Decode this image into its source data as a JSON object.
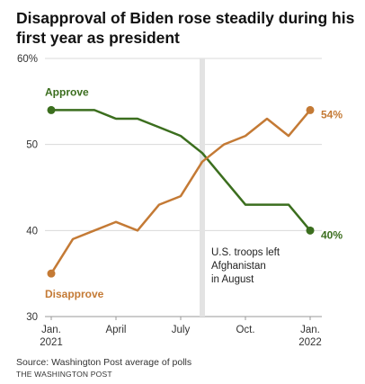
{
  "title": "Disapproval of Biden rose steadily during his first year as president",
  "source": "Source: Washington Post average of polls",
  "publisher": "THE WASHINGTON POST",
  "annotation": [
    "U.S. troops left",
    "Afghanistan",
    "in August"
  ],
  "chart_data": {
    "type": "line",
    "title": "Disapproval of Biden rose steadily during his first year as president",
    "xlabel": "",
    "ylabel": "",
    "ylim": [
      30,
      60
    ],
    "y_ticks": [
      "60%",
      "50",
      "40",
      "30"
    ],
    "y_tick_values": [
      60,
      50,
      40,
      30
    ],
    "x_ticks": [
      {
        "line1": "Jan.",
        "line2": "2021",
        "month": 0
      },
      {
        "line1": "April",
        "line2": "",
        "month": 3
      },
      {
        "line1": "July",
        "line2": "",
        "month": 6
      },
      {
        "line1": "Oct.",
        "line2": "",
        "month": 9
      },
      {
        "line1": "Jan.",
        "line2": "2022",
        "month": 12
      }
    ],
    "xlim": [
      0,
      12
    ],
    "grid": true,
    "highlight_band": {
      "start": 7.0,
      "end": 7.2
    },
    "series": [
      {
        "name": "Approve",
        "color": "#3b6e1e",
        "end_label": "40%",
        "x": [
          0,
          1,
          2,
          3,
          4,
          5,
          6,
          7,
          8,
          9,
          10,
          11,
          12
        ],
        "values": [
          54,
          54,
          54,
          53,
          53,
          52,
          51,
          49,
          46,
          43,
          43,
          43,
          40
        ]
      },
      {
        "name": "Disapprove",
        "color": "#c47a35",
        "end_label": "54%",
        "x": [
          0,
          1,
          2,
          3,
          4,
          5,
          6,
          7,
          8,
          9,
          10,
          11,
          12
        ],
        "values": [
          35,
          39,
          40,
          41,
          40,
          43,
          44,
          48,
          50,
          51,
          53,
          51,
          54
        ]
      }
    ]
  }
}
